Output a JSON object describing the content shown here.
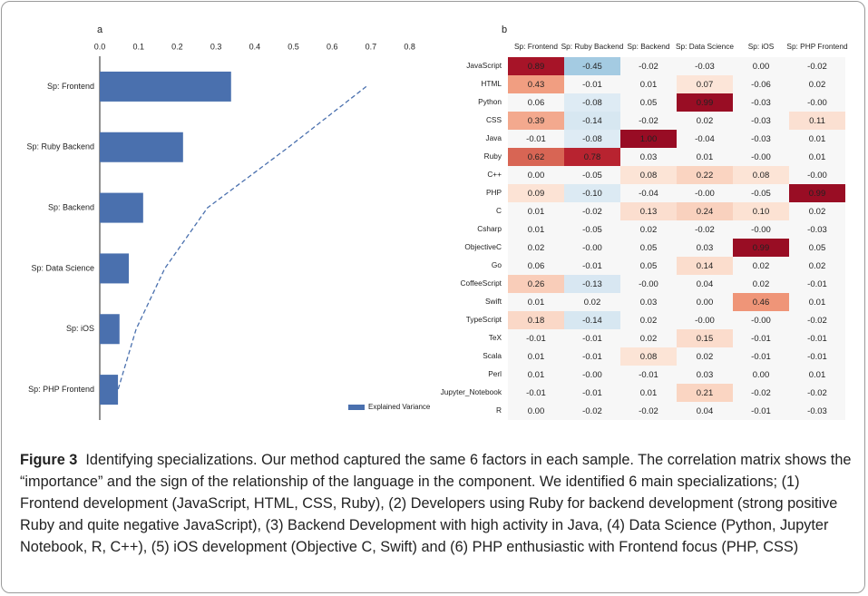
{
  "chart_data": [
    {
      "type": "bar",
      "orientation": "horizontal",
      "panel": "a",
      "categories": [
        "Sp: Frontend",
        "Sp: Ruby Backend",
        "Sp: Backend",
        "Sp: Data Science",
        "Sp: iOS",
        "Sp: PHP Frontend"
      ],
      "series": [
        {
          "name": "Explained Variance",
          "color": "#4a70ae",
          "values": [
            0.339,
            0.215,
            0.112,
            0.075,
            0.051,
            0.047
          ]
        },
        {
          "type": "line",
          "color": "#4a70ae",
          "dashed": true,
          "values": [
            0.688,
            0.487,
            0.278,
            0.168,
            0.094,
            0.047
          ]
        }
      ],
      "xlim": [
        0,
        0.85
      ],
      "xticks": [
        {
          "value": 0,
          "label": "0.0"
        },
        0.1,
        0.2,
        0.3,
        0.4,
        0.5,
        0.6,
        0.7,
        0.8
      ],
      "legend": "bottom-right"
    },
    {
      "type": "heatmap",
      "panel": "b",
      "columns": [
        "Sp: Frontend",
        "Sp: Ruby Backend",
        "Sp: Backend",
        "Sp: Data Science",
        "Sp: iOS",
        "Sp: PHP Frontend"
      ],
      "rows": [
        "JavaScript",
        "HTML",
        "Python",
        "CSS",
        "Java",
        "Ruby",
        "C++",
        "PHP",
        "C",
        "Csharp",
        "ObjectiveC",
        "Go",
        "CoffeeScript",
        "Swift",
        "TypeScript",
        "TeX",
        "Scala",
        "Perl",
        "Jupyter_Notebook",
        "R"
      ],
      "values": [
        [
          0.89,
          -0.45,
          -0.02,
          -0.03,
          0,
          -0.02
        ],
        [
          0.43,
          -0.01,
          0.01,
          0.07,
          -0.06,
          0.02
        ],
        [
          0.06,
          -0.08,
          0.05,
          0.99,
          -0.03,
          0
        ],
        [
          0.39,
          -0.14,
          -0.02,
          0.02,
          -0.03,
          0.11
        ],
        [
          -0.01,
          -0.08,
          1,
          -0.04,
          -0.03,
          0.01
        ],
        [
          0.62,
          0.78,
          0.03,
          0.01,
          0,
          0.01
        ],
        [
          0,
          -0.05,
          0.08,
          0.22,
          0.08,
          0
        ],
        [
          0.09,
          -0.1,
          -0.04,
          0,
          -0.05,
          0.99
        ],
        [
          0.01,
          -0.02,
          0.13,
          0.24,
          0.1,
          0.02
        ],
        [
          0.01,
          -0.05,
          0.02,
          -0.02,
          0,
          -0.03
        ],
        [
          0.02,
          0,
          0.05,
          0.03,
          0.99,
          0.05
        ],
        [
          0.06,
          -0.01,
          0.05,
          0.14,
          0.02,
          0.02
        ],
        [
          0.26,
          -0.13,
          0,
          0.04,
          0.02,
          -0.01
        ],
        [
          0.01,
          0.02,
          0.03,
          0,
          0.46,
          0.01
        ],
        [
          0.18,
          -0.14,
          0.02,
          0,
          0,
          -0.02
        ],
        [
          -0.01,
          -0.01,
          0.02,
          0.15,
          -0.01,
          -0.01
        ],
        [
          0.01,
          -0.01,
          0.08,
          0.02,
          -0.01,
          -0.01
        ],
        [
          0.01,
          0,
          -0.01,
          0.03,
          0,
          0.01
        ],
        [
          -0.01,
          -0.01,
          0.01,
          0.21,
          -0.02,
          -0.02
        ],
        [
          0,
          -0.02,
          -0.02,
          0.04,
          -0.01,
          -0.03
        ]
      ],
      "value_labels": [
        [
          "0.89",
          "-0.45",
          "-0.02",
          "-0.03",
          "0.00",
          "-0.02"
        ],
        [
          "0.43",
          "-0.01",
          "0.01",
          "0.07",
          "-0.06",
          "0.02"
        ],
        [
          "0.06",
          "-0.08",
          "0.05",
          "0.99",
          "-0.03",
          "-0.00"
        ],
        [
          "0.39",
          "-0.14",
          "-0.02",
          "0.02",
          "-0.03",
          "0.11"
        ],
        [
          "-0.01",
          "-0.08",
          "1.00",
          "-0.04",
          "-0.03",
          "0.01"
        ],
        [
          "0.62",
          "0.78",
          "0.03",
          "0.01",
          "-0.00",
          "0.01"
        ],
        [
          "0.00",
          "-0.05",
          "0.08",
          "0.22",
          "0.08",
          "-0.00"
        ],
        [
          "0.09",
          "-0.10",
          "-0.04",
          "-0.00",
          "-0.05",
          "0.99"
        ],
        [
          "0.01",
          "-0.02",
          "0.13",
          "0.24",
          "0.10",
          "0.02"
        ],
        [
          "0.01",
          "-0.05",
          "0.02",
          "-0.02",
          "-0.00",
          "-0.03"
        ],
        [
          "0.02",
          "-0.00",
          "0.05",
          "0.03",
          "0.99",
          "0.05"
        ],
        [
          "0.06",
          "-0.01",
          "0.05",
          "0.14",
          "0.02",
          "0.02"
        ],
        [
          "0.26",
          "-0.13",
          "-0.00",
          "0.04",
          "0.02",
          "-0.01"
        ],
        [
          "0.01",
          "0.02",
          "0.03",
          "0.00",
          "0.46",
          "0.01"
        ],
        [
          "0.18",
          "-0.14",
          "0.02",
          "-0.00",
          "-0.00",
          "-0.02"
        ],
        [
          "-0.01",
          "-0.01",
          "0.02",
          "0.15",
          "-0.01",
          "-0.01"
        ],
        [
          "0.01",
          "-0.01",
          "0.08",
          "0.02",
          "-0.01",
          "-0.01"
        ],
        [
          "0.01",
          "-0.00",
          "-0.01",
          "0.03",
          "0.00",
          "0.01"
        ],
        [
          "-0.01",
          "-0.01",
          "0.01",
          "0.21",
          "-0.02",
          "-0.02"
        ],
        [
          "0.00",
          "-0.02",
          "-0.02",
          "0.04",
          "-0.01",
          "-0.03"
        ]
      ]
    }
  ],
  "caption": {
    "label": "Figure 3",
    "text": "Identifying specializations. Our method captured the same 6 factors in each sample. The correlation matrix shows the “importance” and the sign of the relationship of the language in the component. We identified 6 main specializations; (1) Frontend development (JavaScript, HTML, CSS, Ruby), (2) Developers using Ruby for backend development (strong positive Ruby and quite negative JavaScript), (3) Backend Development with high activity in Java, (4) Data Science (Python, Jupyter Notebook, R, C++), (5) iOS development (Objective C, Swift) and (6) PHP enthusiastic with Frontend focus (PHP, CSS)"
  }
}
